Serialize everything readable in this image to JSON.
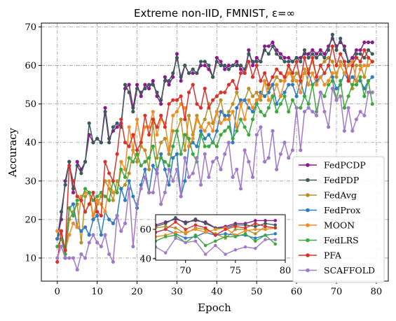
{
  "chart_data": {
    "type": "line",
    "title": "Extreme non-IID, FMNIST, ε=∞",
    "xlabel": "Epoch",
    "ylabel": "Accuracy",
    "xlim": [
      -4,
      83
    ],
    "ylim": [
      4,
      71
    ],
    "xticks": [
      0,
      10,
      20,
      30,
      40,
      50,
      60,
      70,
      80
    ],
    "yticks": [
      10,
      20,
      30,
      40,
      50,
      60,
      70
    ],
    "grid": true,
    "legend_position": "lower-right",
    "x": [
      0,
      1,
      2,
      3,
      4,
      5,
      6,
      7,
      8,
      9,
      10,
      11,
      12,
      13,
      14,
      15,
      16,
      17,
      18,
      19,
      20,
      21,
      22,
      23,
      24,
      25,
      26,
      27,
      28,
      29,
      30,
      31,
      32,
      33,
      34,
      35,
      36,
      37,
      38,
      39,
      40,
      41,
      42,
      43,
      44,
      45,
      46,
      47,
      48,
      49,
      50,
      51,
      52,
      53,
      54,
      55,
      56,
      57,
      58,
      59,
      60,
      61,
      62,
      63,
      64,
      65,
      66,
      67,
      68,
      69,
      70,
      71,
      72,
      73,
      74,
      75,
      76,
      77,
      78,
      79
    ],
    "series": [
      {
        "name": "FedPCDP",
        "color": "#8b1a8b",
        "values": [
          15,
          20,
          30,
          35,
          27,
          35,
          33,
          35,
          42,
          40,
          41,
          40,
          49,
          41,
          43,
          44,
          45,
          54,
          55,
          49,
          55,
          52,
          55,
          54,
          56,
          52,
          50,
          57,
          55,
          57,
          63,
          56,
          60,
          58,
          58,
          58,
          60,
          60,
          59,
          57,
          62,
          61,
          59,
          60,
          60,
          61,
          59,
          58,
          64,
          60,
          62,
          61,
          65,
          65,
          66,
          64,
          63,
          62,
          62,
          61,
          62,
          62,
          63,
          63,
          64,
          63,
          64,
          63,
          65,
          67,
          65,
          66,
          65,
          61,
          62,
          64,
          64,
          66,
          66,
          66
        ]
      },
      {
        "name": "FedPDP",
        "color": "#3d5a5a",
        "values": [
          15,
          22,
          29,
          35,
          28,
          34,
          32,
          35,
          45,
          40,
          41,
          40,
          48,
          40,
          44,
          45,
          44,
          55,
          53,
          48,
          54,
          53,
          54,
          55,
          55,
          53,
          51,
          56,
          56,
          58,
          62,
          57,
          60,
          58,
          59,
          58,
          61,
          61,
          60,
          57,
          61,
          60,
          60,
          59,
          60,
          60,
          60,
          59,
          63,
          61,
          61,
          61,
          64,
          63,
          65,
          63,
          62,
          61,
          61,
          61,
          62,
          61,
          64,
          62,
          63,
          62,
          63,
          62,
          64,
          68,
          64,
          67,
          64,
          61,
          61,
          63,
          63,
          62,
          64,
          63
        ]
      },
      {
        "name": "FedAvg",
        "color": "#b8902a",
        "values": [
          17,
          17,
          10,
          20,
          22,
          24,
          14,
          26,
          27,
          20,
          24,
          26,
          30,
          28,
          25,
          30,
          28,
          29,
          32,
          38,
          35,
          39,
          38,
          33,
          45,
          36,
          40,
          41,
          37,
          43,
          43,
          46,
          38,
          47,
          42,
          47,
          44,
          46,
          50,
          45,
          48,
          51,
          46,
          48,
          50,
          53,
          50,
          51,
          54,
          52,
          53,
          51,
          56,
          54,
          55,
          57,
          56,
          56,
          60,
          56,
          58,
          57,
          58,
          59,
          61,
          57,
          60,
          61,
          62,
          61,
          57,
          61,
          60,
          57,
          54,
          60,
          60,
          57,
          62,
          61
        ]
      },
      {
        "name": "FedProx",
        "color": "#2e7bbf",
        "values": [
          15,
          17,
          10,
          23,
          24,
          18,
          17,
          18,
          16,
          20,
          21,
          16,
          22,
          20,
          19,
          21,
          28,
          25,
          30,
          26,
          23,
          29,
          33,
          27,
          34,
          32,
          37,
          33,
          29,
          36,
          37,
          26,
          30,
          39,
          40,
          39,
          43,
          41,
          42,
          40,
          43,
          48,
          47,
          47,
          40,
          49,
          51,
          51,
          49,
          48,
          50,
          53,
          52,
          53,
          55,
          50,
          52,
          53,
          55,
          55,
          52,
          56,
          52,
          58,
          55,
          56,
          57,
          58,
          60,
          57,
          54,
          55,
          58,
          56,
          57,
          56,
          56,
          54,
          56,
          57
        ]
      },
      {
        "name": "MOON",
        "color": "#f08c28",
        "values": [
          17,
          17,
          12,
          16,
          19,
          18,
          26,
          27,
          27,
          21,
          25,
          24,
          22,
          30,
          27,
          27,
          35,
          33,
          44,
          38,
          46,
          40,
          44,
          44,
          48,
          42,
          46,
          45,
          38,
          47,
          48,
          50,
          49,
          39,
          41,
          46,
          44,
          43,
          45,
          43,
          48,
          45,
          46,
          46,
          48,
          44,
          50,
          46,
          51,
          49,
          51,
          52,
          56,
          51,
          52,
          55,
          52,
          56,
          58,
          57,
          56,
          53,
          59,
          55,
          58,
          55,
          57,
          55,
          56,
          58,
          58,
          60,
          58,
          60,
          61,
          56,
          59,
          60,
          60,
          61
        ]
      },
      {
        "name": "FedLRS",
        "color": "#3ea83e",
        "values": [
          13,
          15,
          11,
          23,
          21,
          25,
          25,
          28,
          27,
          25,
          26,
          27,
          26,
          25,
          30,
          27,
          33,
          31,
          36,
          35,
          37,
          34,
          35,
          36,
          39,
          33,
          36,
          35,
          34,
          39,
          43,
          37,
          42,
          41,
          37,
          35,
          42,
          39,
          39,
          40,
          39,
          42,
          43,
          44,
          41,
          43,
          46,
          44,
          42,
          46,
          50,
          48,
          47,
          49,
          52,
          48,
          50,
          52,
          48,
          51,
          49,
          49,
          52,
          50,
          55,
          48,
          53,
          52,
          55,
          56,
          51,
          56,
          49,
          52,
          55,
          55,
          57,
          52,
          56,
          50
        ]
      },
      {
        "name": "PFA",
        "color": "#d9322b",
        "values": [
          9,
          17,
          12,
          34,
          30,
          26,
          25,
          22,
          24,
          27,
          22,
          21,
          35,
          32,
          30,
          37,
          46,
          40,
          39,
          42,
          38,
          40,
          47,
          42,
          46,
          44,
          47,
          44,
          50,
          51,
          51,
          52,
          46,
          53,
          55,
          50,
          49,
          54,
          49,
          51,
          52,
          53,
          53,
          55,
          56,
          54,
          58,
          58,
          61,
          57,
          60,
          56,
          58,
          55,
          57,
          59,
          58,
          57,
          60,
          58,
          61,
          56,
          62,
          58,
          62,
          57,
          60,
          58,
          60,
          65,
          60,
          63,
          61,
          56,
          60,
          62,
          61,
          64,
          62,
          61
        ]
      },
      {
        "name": "SCAFFOLD",
        "color": "#a07ac8",
        "values": [
          10,
          13,
          10,
          10,
          10,
          7,
          11,
          10,
          14,
          16,
          14,
          13,
          16,
          11,
          9,
          21,
          17,
          19,
          28,
          13,
          24,
          28,
          31,
          27,
          27,
          33,
          24,
          27,
          33,
          30,
          33,
          26,
          36,
          31,
          32,
          36,
          29,
          37,
          31,
          35,
          36,
          33,
          37,
          40,
          31,
          33,
          28,
          38,
          35,
          31,
          42,
          44,
          35,
          36,
          43,
          33,
          37,
          40,
          36,
          38,
          49,
          38,
          48,
          49,
          48,
          47,
          53,
          48,
          44,
          54,
          51,
          52,
          43,
          49,
          43,
          46,
          48,
          47,
          53,
          53
        ]
      }
    ],
    "inset": {
      "xlim": [
        67,
        80
      ],
      "ylim": [
        39,
        70
      ],
      "xticks": [
        70,
        75,
        80
      ],
      "yticks": [
        40,
        60
      ]
    }
  }
}
